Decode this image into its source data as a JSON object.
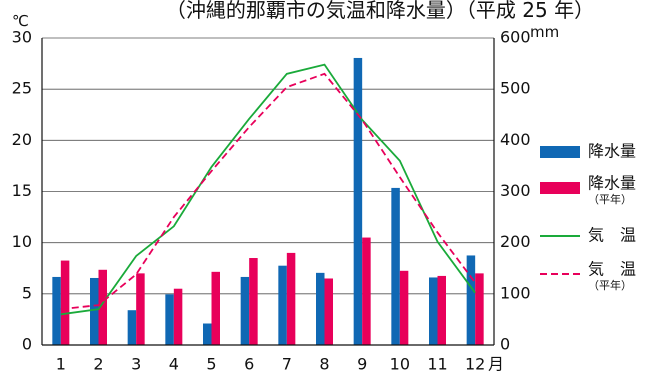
{
  "chart_data": {
    "type": "bar",
    "title": "（沖縄的那覇市の気温和降水量）（平成 25 年）",
    "categories": [
      "1",
      "2",
      "3",
      "4",
      "5",
      "6",
      "7",
      "8",
      "9",
      "10",
      "11",
      "12"
    ],
    "x_unit": "月",
    "y_left": {
      "unit": "℃",
      "range": [
        0,
        30
      ],
      "ticks": [
        "0",
        "5",
        "10",
        "15",
        "20",
        "25",
        "30"
      ]
    },
    "y_right": {
      "unit": "mm",
      "range": [
        0,
        600
      ],
      "ticks": [
        "0",
        "100",
        "200",
        "300",
        "400",
        "500",
        "600"
      ]
    },
    "series": [
      {
        "name": "降水量",
        "type": "bar",
        "axis": "right",
        "color": "#1068b4",
        "values": [
          133,
          131,
          68,
          99,
          42,
          133,
          155,
          141,
          561,
          307,
          132,
          175
        ]
      },
      {
        "name": "降水量",
        "name_sub": "（平年）",
        "type": "bar",
        "axis": "right",
        "color": "#e8005a",
        "values": [
          165,
          147,
          140,
          110,
          143,
          170,
          180,
          130,
          210,
          145,
          135,
          140
        ]
      },
      {
        "name": "気　温",
        "type": "line",
        "axis": "left",
        "color": "#1aaa3a",
        "dash": false,
        "values": [
          3.0,
          3.5,
          8.7,
          11.6,
          17.4,
          22.1,
          26.5,
          27.4,
          22.0,
          18.0,
          10.1,
          5.1
        ]
      },
      {
        "name": "気　温",
        "name_sub": "（平年）",
        "type": "line",
        "axis": "left",
        "color": "#e8005a",
        "dash": true,
        "values": [
          3.5,
          3.9,
          6.9,
          12.5,
          17.0,
          21.3,
          25.2,
          26.5,
          22.0,
          16.4,
          11.0,
          6.1
        ]
      }
    ],
    "grid": true,
    "legend": "right"
  }
}
